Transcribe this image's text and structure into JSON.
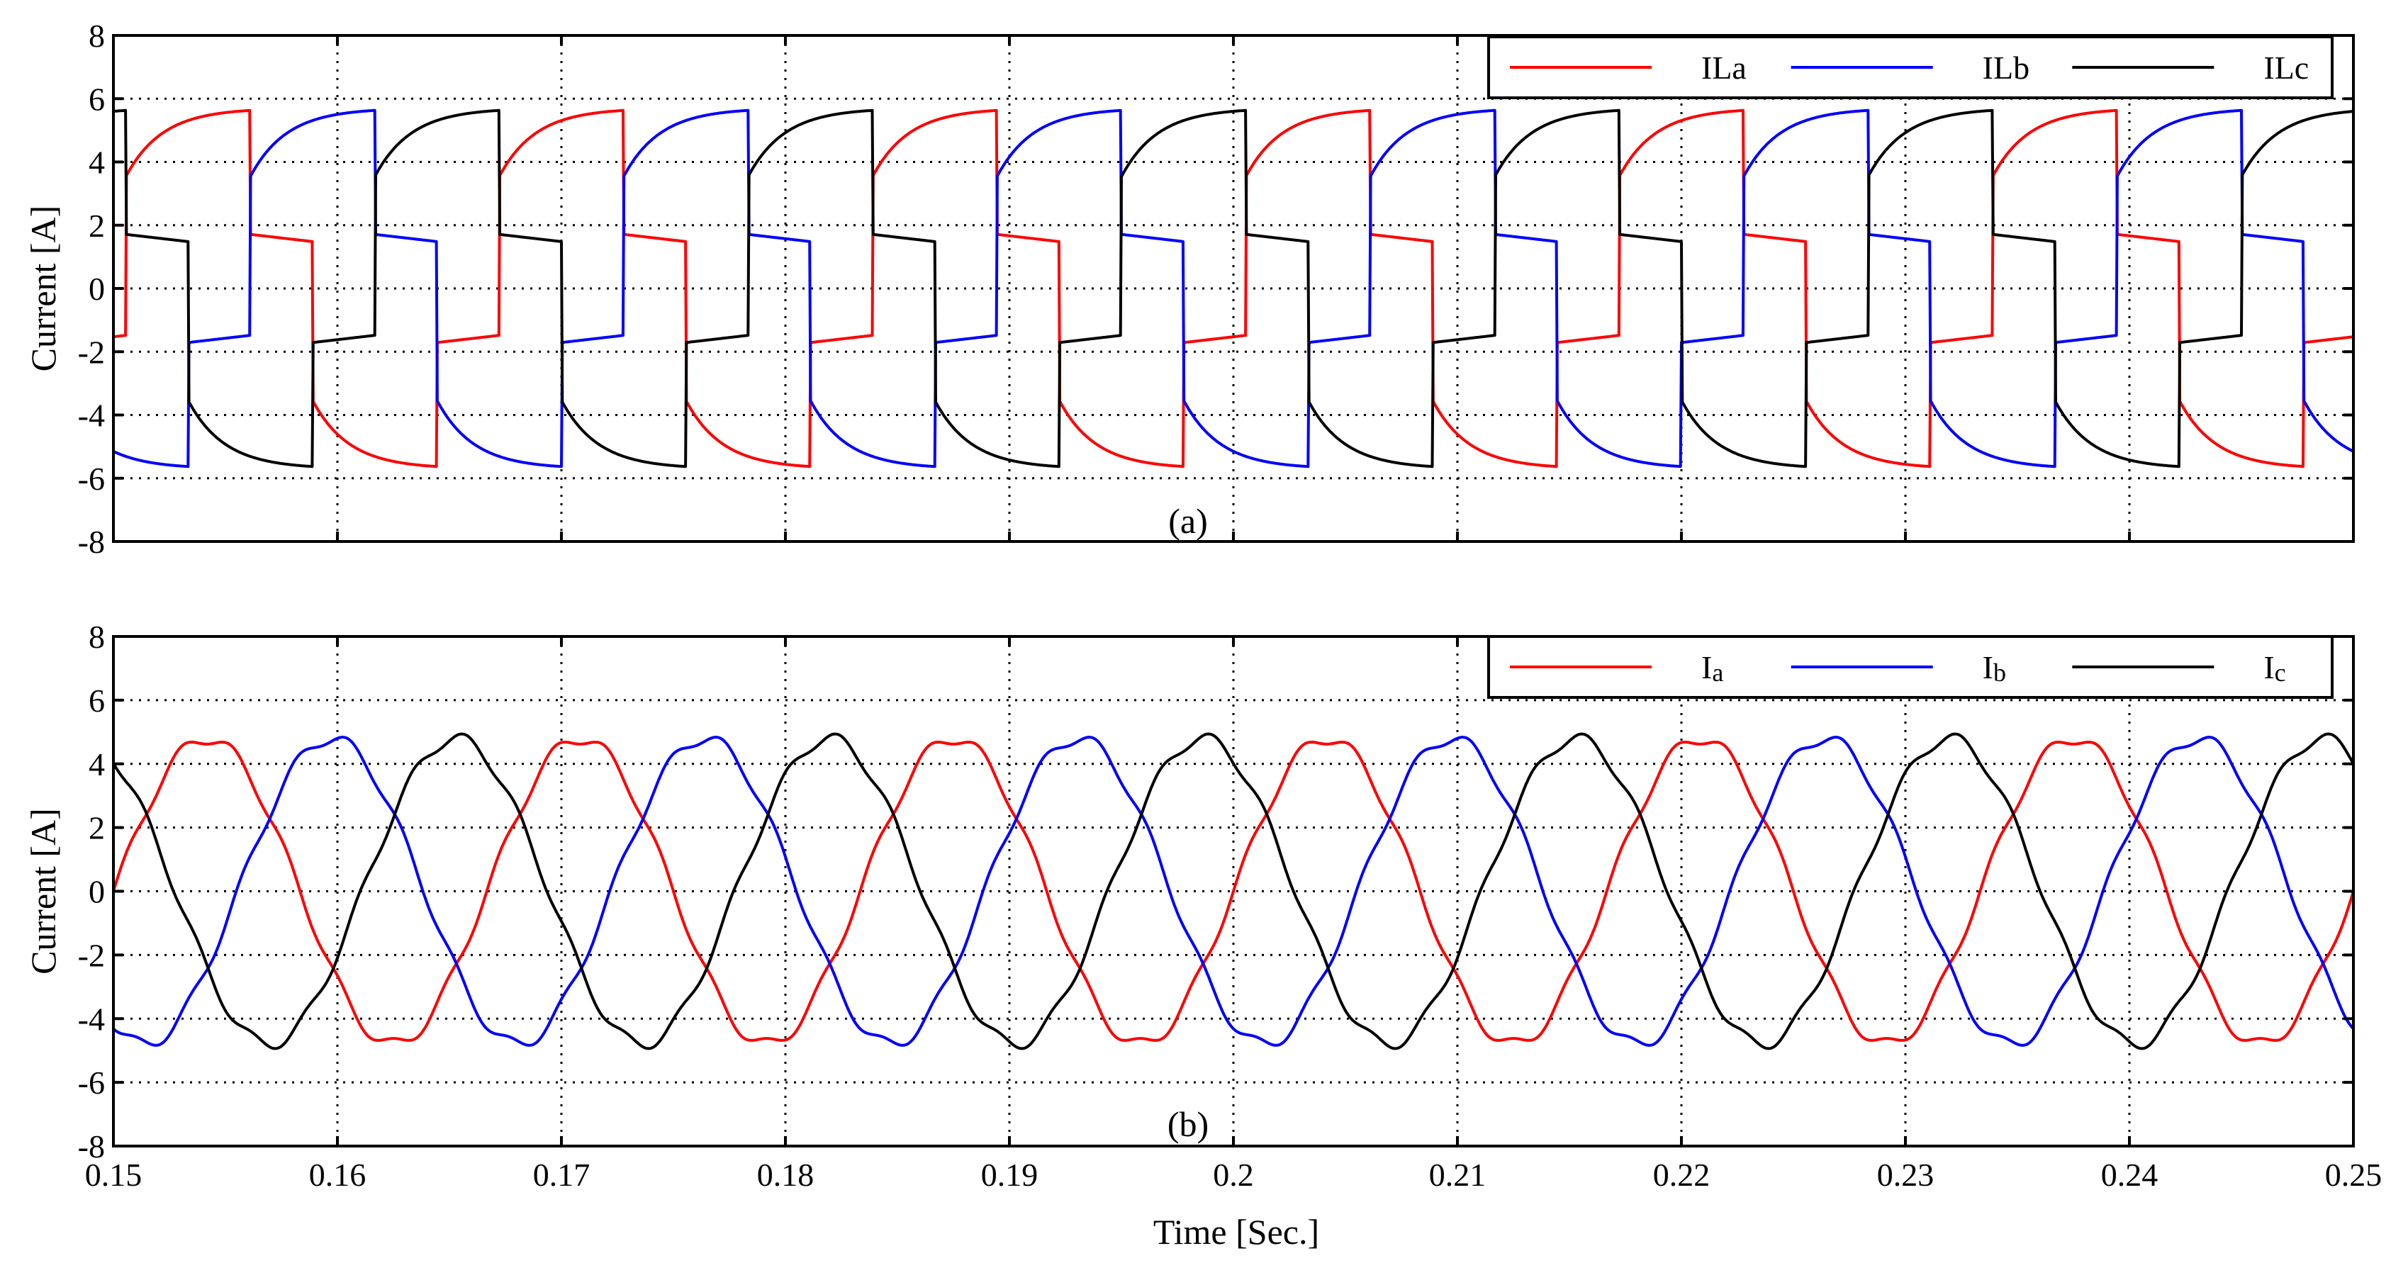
{
  "chart_data": [
    {
      "type": "line",
      "panel_label": "(a)",
      "ylabel": "Current [A]",
      "xlabel": "",
      "xlim": [
        0.15,
        0.25
      ],
      "ylim": [
        -8,
        8
      ],
      "yticks": [
        8,
        6,
        4,
        2,
        0,
        -2,
        -4,
        -6,
        -8
      ],
      "ytick_labels": [
        "8",
        "6",
        "4",
        "2",
        "0",
        "-2",
        "-4",
        "-6",
        "-8"
      ],
      "grid": true,
      "legend_position": "top-right",
      "waveform": "six-step load current",
      "frequency_hz": 60,
      "peak_a": 5.7,
      "series": [
        {
          "name": "ILa",
          "color": "#ff0000",
          "phase_deg": -12
        },
        {
          "name": "ILb",
          "color": "#0000ff",
          "phase_deg": -132
        },
        {
          "name": "ILc",
          "color": "#000000",
          "phase_deg": 108
        }
      ]
    },
    {
      "type": "line",
      "panel_label": "(b)",
      "ylabel": "Current [A]",
      "xlabel": "Time [Sec.]",
      "xlim": [
        0.15,
        0.25
      ],
      "ylim": [
        -8,
        8
      ],
      "yticks": [
        8,
        6,
        4,
        2,
        0,
        -2,
        -4,
        -6,
        -8
      ],
      "ytick_labels": [
        "8",
        "6",
        "4",
        "2",
        "0",
        "-2",
        "-4",
        "-6",
        "-8"
      ],
      "xticks": [
        0.15,
        0.16,
        0.17,
        0.18,
        0.19,
        0.2,
        0.21,
        0.22,
        0.23,
        0.24,
        0.25
      ],
      "xtick_labels": [
        "0.15",
        "0.16",
        "0.17",
        "0.18",
        "0.19",
        "0.2",
        "0.21",
        "0.22",
        "0.23",
        "0.24",
        "0.25"
      ],
      "grid": true,
      "legend_position": "top-right",
      "waveform": "sinusoidal source current",
      "frequency_hz": 60,
      "peak_a": 4.8,
      "series": [
        {
          "name": "I",
          "subscript": "a",
          "color": "#ff0000",
          "phase_deg": 0
        },
        {
          "name": "I",
          "subscript": "b",
          "color": "#0000ff",
          "phase_deg": -120
        },
        {
          "name": "I",
          "subscript": "c",
          "color": "#000000",
          "phase_deg": 120
        }
      ]
    }
  ]
}
